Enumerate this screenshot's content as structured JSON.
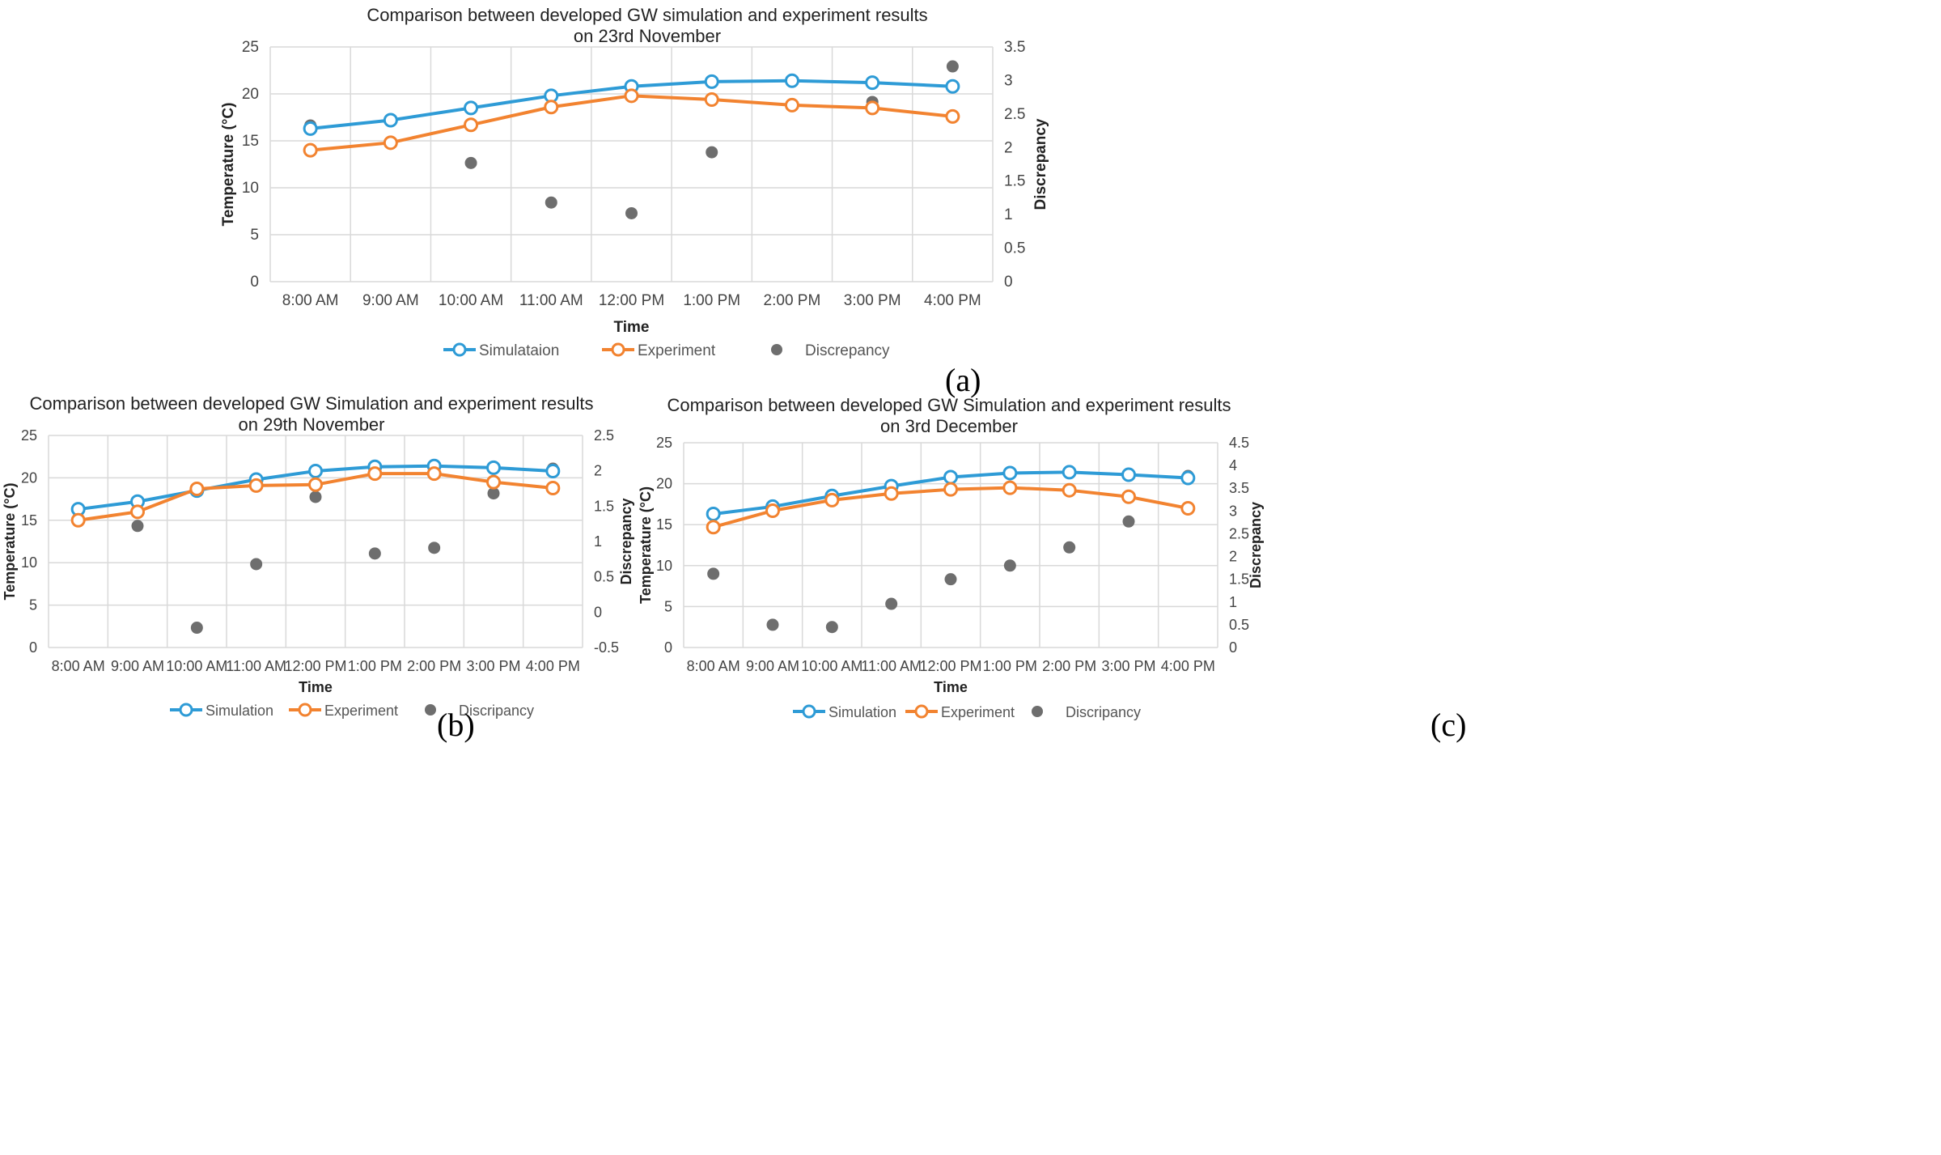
{
  "charts": [
    {
      "type": "line",
      "title_line1": "Comparison between developed GW simulation and experiment results",
      "title_line2": "on 23rd  November",
      "xlabel": "Time",
      "ylabel": "Temperature (°C)",
      "y2label": "Discrepancy",
      "categories": [
        "8:00 AM",
        "9:00 AM",
        "10:00 AM",
        "11:00 AM",
        "12:00 PM",
        "1:00 PM",
        "2:00 PM",
        "3:00 PM",
        "4:00 PM"
      ],
      "ylim": [
        0,
        25
      ],
      "yticks": [
        "0",
        "5",
        "10",
        "15",
        "20",
        "25"
      ],
      "y2lim": [
        0,
        3.5
      ],
      "y2ticks": [
        "0",
        "0.5",
        "1",
        "1.5",
        "2",
        "2.5",
        "3",
        "3.5"
      ],
      "series": [
        {
          "name": "Simulataion",
          "color": "#2e9bd6",
          "values": [
            16.3,
            17.2,
            18.5,
            19.8,
            20.8,
            21.3,
            21.4,
            21.2,
            20.8
          ]
        },
        {
          "name": "Experiment",
          "color": "#f28330",
          "values": [
            14.0,
            14.8,
            16.7,
            18.6,
            19.8,
            19.4,
            18.8,
            18.5,
            17.6
          ]
        }
      ],
      "discrepancy": {
        "name": "Discrepancy",
        "color": "#6e6e6e",
        "values": [
          2.33,
          2.4,
          1.77,
          1.18,
          1.02,
          1.93,
          2.62,
          2.68,
          3.21
        ]
      },
      "caption": "(a)"
    },
    {
      "type": "line",
      "title_line1": "Comparison between developed GW Simulation and experiment results",
      "title_line2": "on 29th  November",
      "xlabel": "Time",
      "ylabel": "Temperature (°C)",
      "y2label": "Discrepancy",
      "categories": [
        "8:00 AM",
        "9:00 AM",
        "10:00 AM",
        "11:00 AM",
        "12:00 PM",
        "1:00 PM",
        "2:00 PM",
        "3:00 PM",
        "4:00 PM"
      ],
      "ylim": [
        0,
        25
      ],
      "yticks": [
        "0",
        "5",
        "10",
        "15",
        "20",
        "25"
      ],
      "y2lim": [
        -0.5,
        2.5
      ],
      "y2ticks": [
        "-0.5",
        "0",
        "0.5",
        "1",
        "1.5",
        "2",
        "2.5"
      ],
      "series": [
        {
          "name": "Simulation",
          "color": "#2e9bd6",
          "values": [
            16.3,
            17.2,
            18.5,
            19.8,
            20.8,
            21.3,
            21.4,
            21.2,
            20.8
          ]
        },
        {
          "name": "Experiment",
          "color": "#f28330",
          "values": [
            15.0,
            16.0,
            18.7,
            19.1,
            19.2,
            20.5,
            20.5,
            19.5,
            18.8
          ]
        }
      ],
      "discrepancy": {
        "name": "Discripancy",
        "color": "#6e6e6e",
        "values": [
          1.33,
          1.22,
          -0.22,
          0.68,
          1.63,
          0.83,
          0.91,
          1.68,
          2.03
        ]
      },
      "caption": "(b)"
    },
    {
      "type": "line",
      "title_line1": "Comparison between developed GW Simulation and experiment results",
      "title_line2": "on 3rd  December",
      "xlabel": "Time",
      "ylabel": "Temperature (°C)",
      "y2label": "Discrepancy",
      "categories": [
        "8:00 AM",
        "9:00 AM",
        "10:00 AM",
        "11:00 AM",
        "12:00 PM",
        "1:00 PM",
        "2:00 PM",
        "3:00 PM",
        "4:00 PM"
      ],
      "ylim": [
        0,
        25
      ],
      "yticks": [
        "0",
        "5",
        "10",
        "15",
        "20",
        "25"
      ],
      "y2lim": [
        0,
        4.5
      ],
      "y2ticks": [
        "0",
        "0.5",
        "1",
        "1.5",
        "2",
        "2.5",
        "3",
        "3.5",
        "4",
        "4.5"
      ],
      "series": [
        {
          "name": "Simulation",
          "color": "#2e9bd6",
          "values": [
            16.3,
            17.2,
            18.5,
            19.7,
            20.8,
            21.3,
            21.4,
            21.1,
            20.7
          ]
        },
        {
          "name": "Experiment",
          "color": "#f28330",
          "values": [
            14.7,
            16.7,
            18.0,
            18.8,
            19.3,
            19.5,
            19.2,
            18.4,
            17.0
          ]
        }
      ],
      "discrepancy": {
        "name": "Discripancy",
        "color": "#6e6e6e",
        "values": [
          1.62,
          0.5,
          0.45,
          0.96,
          1.5,
          1.8,
          2.2,
          2.77,
          3.77
        ]
      },
      "caption": "(c)"
    }
  ]
}
